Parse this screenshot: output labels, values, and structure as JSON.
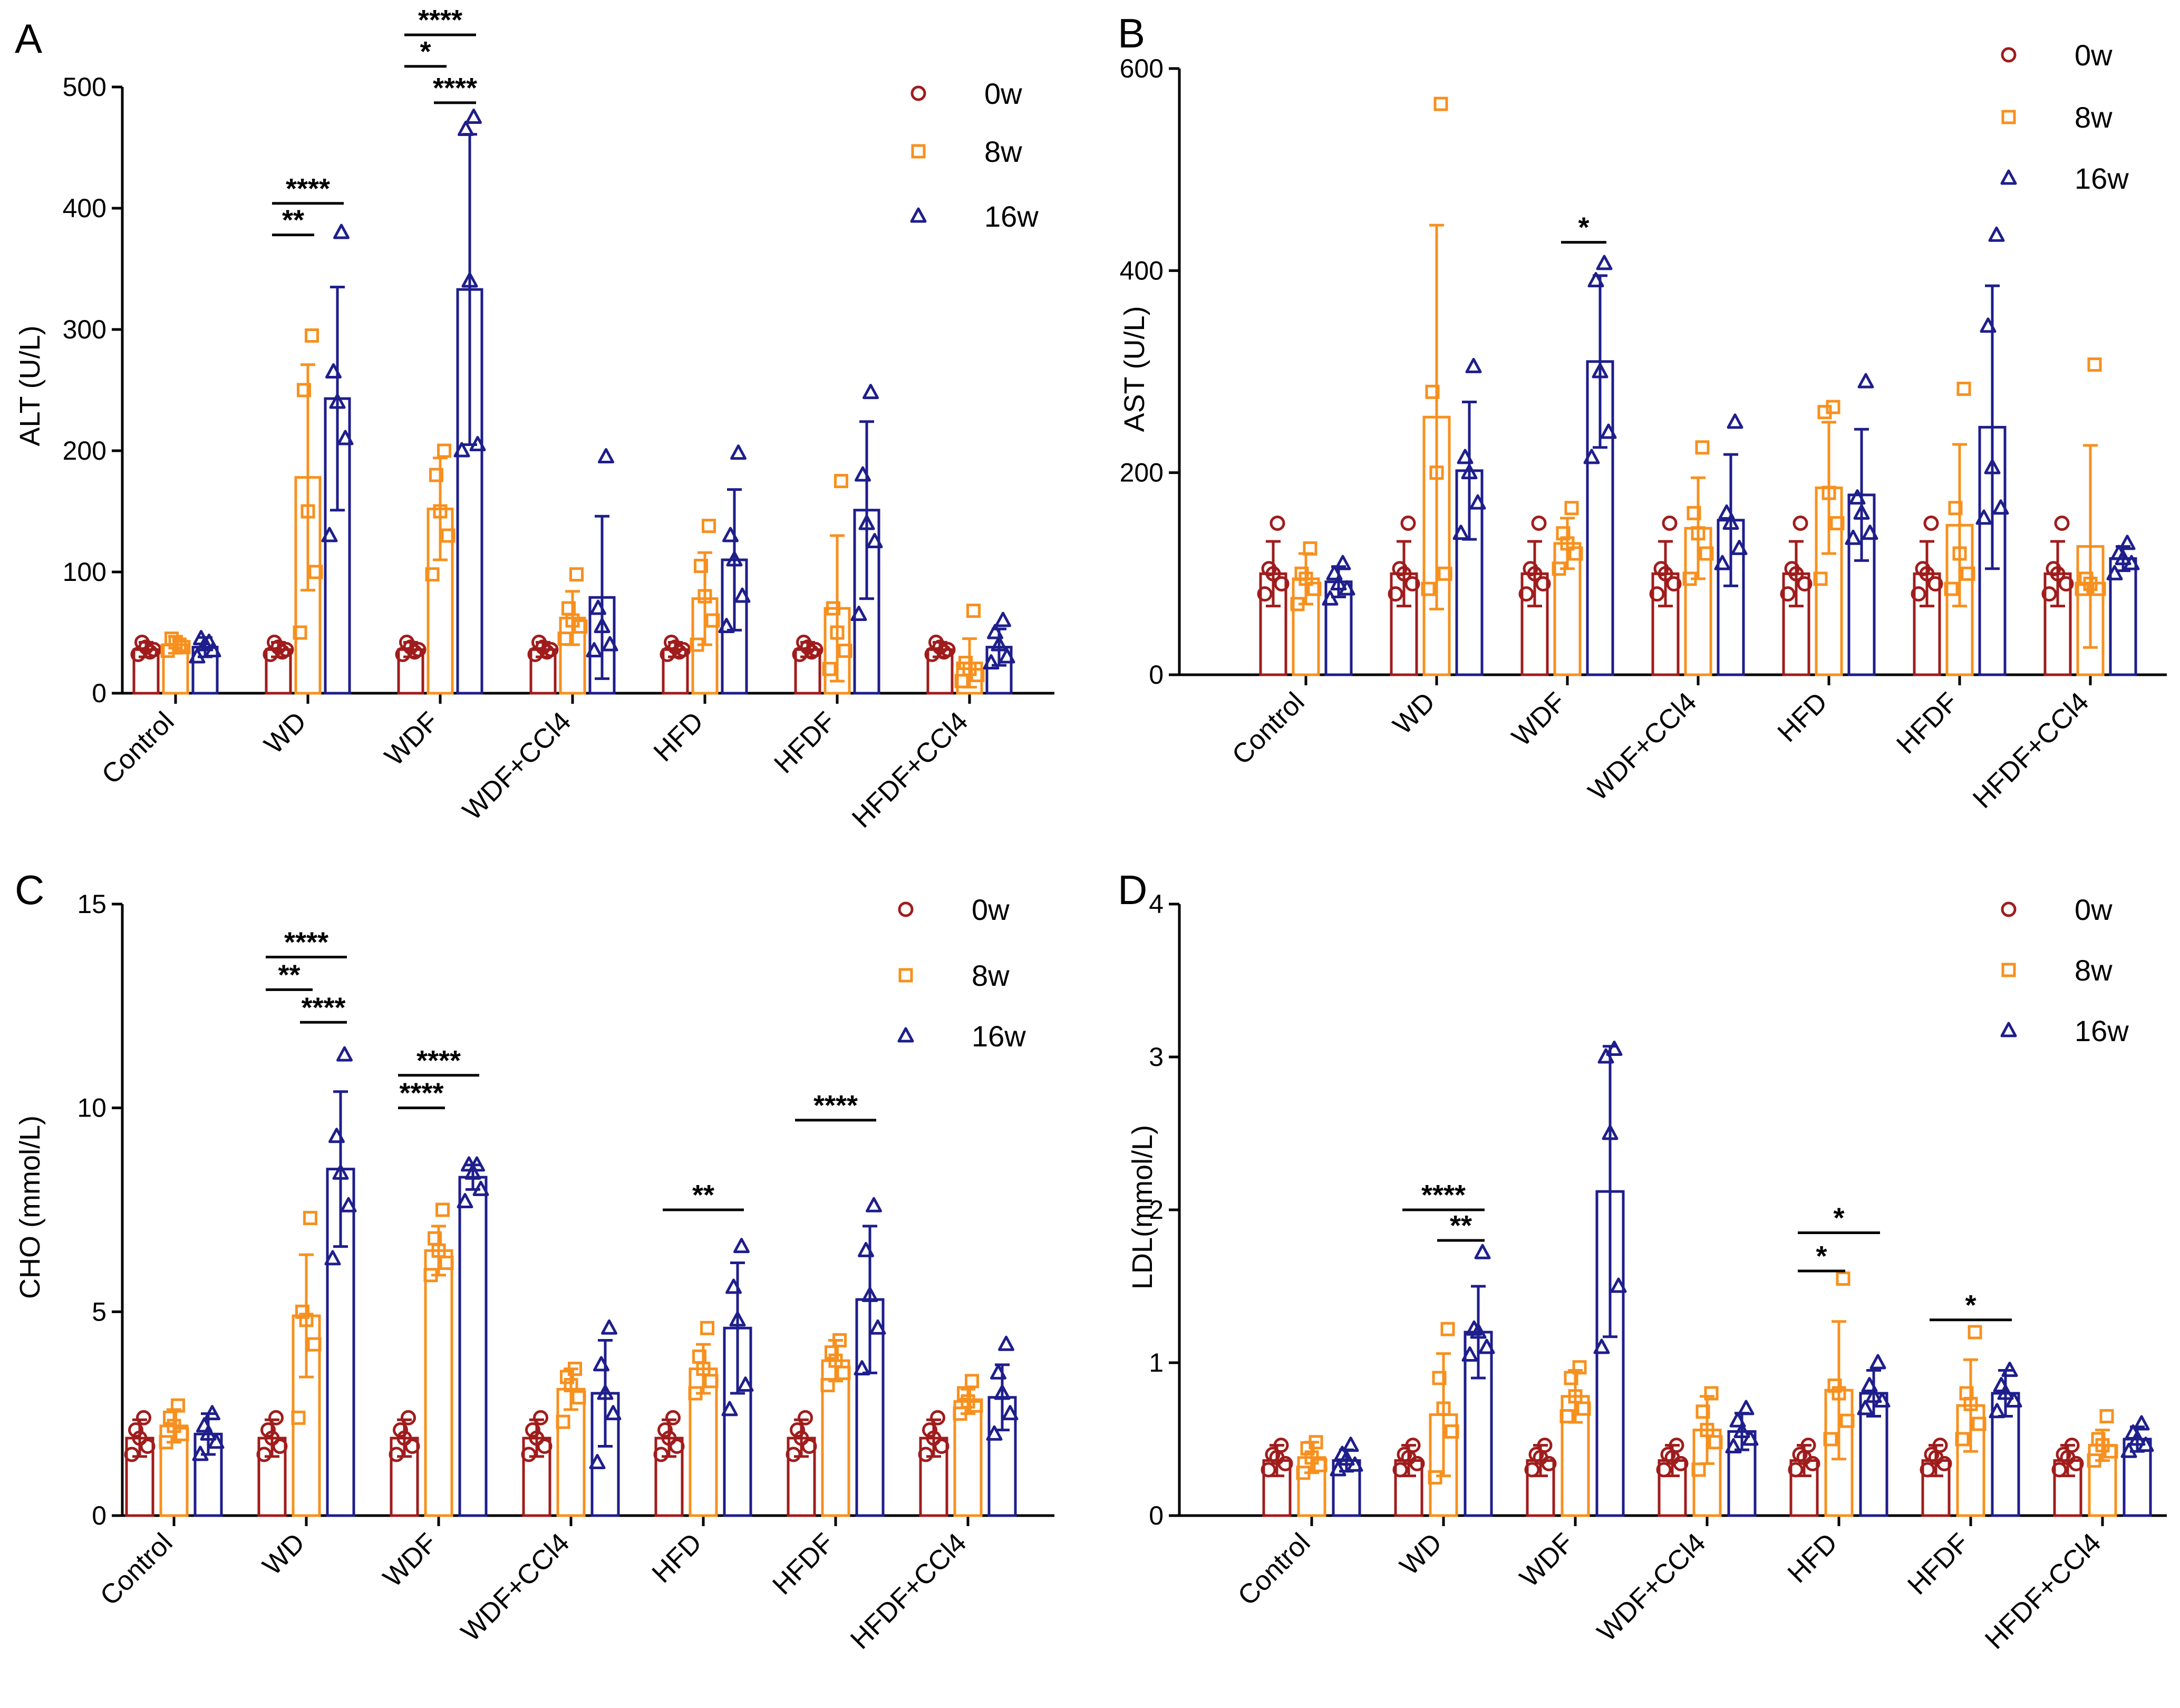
{
  "series_colors": {
    "0w": "#a01c1c",
    "8w": "#f7901e",
    "16w": "#1e1e8c"
  },
  "legend": [
    {
      "name": "0w",
      "marker": "circle"
    },
    {
      "name": "8w",
      "marker": "square"
    },
    {
      "name": "16w",
      "marker": "triangle"
    }
  ],
  "chart_data": [
    {
      "panel": "A",
      "type": "bar",
      "ylabel": "ALT (U/L)",
      "ylim": [
        0,
        500
      ],
      "yticks": [
        0,
        100,
        200,
        300,
        400,
        500
      ],
      "categories": [
        "Control",
        "WD",
        "WDF",
        "WDF+CCl4",
        "HFD",
        "HFDF",
        "HFDF+CCl4"
      ],
      "series": [
        {
          "name": "0w",
          "means": [
            36,
            36,
            36,
            36,
            36,
            36,
            36
          ],
          "sd": [
            6,
            6,
            6,
            6,
            6,
            6,
            6
          ],
          "points": [
            [
              32,
              36,
              38,
              42,
              34
            ],
            [
              32,
              36,
              38,
              42,
              34
            ],
            [
              32,
              36,
              38,
              42,
              34
            ],
            [
              32,
              36,
              38,
              42,
              34
            ],
            [
              32,
              36,
              38,
              42,
              34
            ],
            [
              32,
              36,
              38,
              42,
              34
            ],
            [
              32,
              36,
              38,
              42,
              34
            ]
          ]
        },
        {
          "name": "8w",
          "means": [
            40,
            178,
            152,
            62,
            78,
            70,
            25
          ],
          "sd": [
            7,
            93,
            42,
            22,
            38,
            60,
            20
          ],
          "points": [
            [
              35,
              38,
              42,
              45,
              40
            ],
            [
              50,
              100,
              150,
              250,
              295
            ],
            [
              98,
              130,
              150,
              180,
              200
            ],
            [
              45,
              55,
              60,
              70,
              98
            ],
            [
              40,
              60,
              80,
              105,
              138
            ],
            [
              20,
              35,
              50,
              70,
              175
            ],
            [
              10,
              15,
              20,
              25,
              68
            ]
          ]
        },
        {
          "name": "16w",
          "means": [
            38,
            243,
            333,
            79,
            110,
            151,
            38
          ],
          "sd": [
            8,
            92,
            128,
            67,
            58,
            73,
            15
          ],
          "points": [
            [
              30,
              35,
              40,
              45,
              42
            ],
            [
              130,
              210,
              240,
              265,
              380
            ],
            [
              200,
              205,
              340,
              465,
              475
            ],
            [
              35,
              40,
              55,
              70,
              195
            ],
            [
              55,
              80,
              110,
              130,
              198
            ],
            [
              65,
              125,
              140,
              180,
              248
            ],
            [
              25,
              30,
              40,
              50,
              60
            ]
          ]
        }
      ],
      "significance": [
        {
          "label": "****",
          "from_cat": 1,
          "from_series": 0,
          "to_cat": 1,
          "to_series": 2,
          "y": 404
        },
        {
          "label": "**",
          "from_cat": 1,
          "from_series": 0,
          "to_cat": 1,
          "to_series": 1,
          "y": 378
        },
        {
          "label": "****",
          "from_cat": 2,
          "from_series": 0,
          "to_cat": 2,
          "to_series": 2,
          "y": 543
        },
        {
          "label": "*",
          "from_cat": 2,
          "from_series": 0,
          "to_cat": 2,
          "to_series": 1,
          "y": 517
        },
        {
          "label": "****",
          "from_cat": 2,
          "from_series": 1,
          "to_cat": 2,
          "to_series": 2,
          "y": 487
        }
      ]
    },
    {
      "panel": "B",
      "type": "bar",
      "ylabel": "AST (U/L)",
      "ylim": [
        0,
        600
      ],
      "yticks": [
        0,
        200,
        400,
        600
      ],
      "categories": [
        "Control",
        "WD",
        "WDF",
        "WDF+CCl4",
        "HFD",
        "HFDF",
        "HFDF+CCl4"
      ],
      "series": [
        {
          "name": "0w",
          "means": [
            100,
            100,
            100,
            100,
            100,
            100,
            100
          ],
          "sd": [
            32,
            32,
            32,
            32,
            32,
            32,
            32
          ],
          "points": [
            [
              80,
              90,
              100,
              105,
              150
            ],
            [
              80,
              90,
              100,
              105,
              150
            ],
            [
              80,
              90,
              100,
              105,
              150
            ],
            [
              80,
              90,
              100,
              105,
              150
            ],
            [
              80,
              90,
              100,
              105,
              150
            ],
            [
              80,
              90,
              100,
              105,
              150
            ],
            [
              80,
              90,
              100,
              105,
              150
            ]
          ]
        },
        {
          "name": "8w",
          "means": [
            95,
            255,
            130,
            145,
            185,
            148,
            127
          ],
          "sd": [
            25,
            190,
            25,
            50,
            65,
            80,
            100
          ],
          "points": [
            [
              70,
              85,
              95,
              100,
              125
            ],
            [
              85,
              100,
              200,
              280,
              565
            ],
            [
              105,
              120,
              130,
              140,
              165
            ],
            [
              95,
              120,
              140,
              160,
              225
            ],
            [
              95,
              150,
              180,
              260,
              265
            ],
            [
              85,
              100,
              120,
              165,
              283
            ],
            [
              85,
              85,
              90,
              95,
              307
            ]
          ]
        },
        {
          "name": "16w",
          "means": [
            92,
            202,
            310,
            153,
            178,
            245,
            115
          ],
          "sd": [
            15,
            68,
            85,
            65,
            65,
            140,
            12
          ],
          "points": [
            [
              75,
              85,
              90,
              100,
              110
            ],
            [
              140,
              170,
              200,
              215,
              305
            ],
            [
              215,
              240,
              300,
              390,
              407
            ],
            [
              110,
              125,
              150,
              160,
              250
            ],
            [
              135,
              140,
              160,
              175,
              290
            ],
            [
              155,
              165,
              205,
              345,
              435
            ],
            [
              100,
              110,
              115,
              120,
              130
            ]
          ]
        }
      ],
      "significance": [
        {
          "label": "*",
          "from_cat": 2,
          "from_series": 1,
          "to_cat": 2,
          "to_series": 2,
          "y": 428
        }
      ]
    },
    {
      "panel": "C",
      "type": "bar",
      "ylabel": "CHO (mmol/L)",
      "ylim": [
        0,
        15
      ],
      "yticks": [
        0,
        5,
        10,
        15
      ],
      "categories": [
        "Control",
        "WD",
        "WDF",
        "WDF+CCl4",
        "HFD",
        "HFDF",
        "HFDF+CCl4"
      ],
      "series": [
        {
          "name": "0w",
          "means": [
            1.9,
            1.9,
            1.9,
            1.9,
            1.9,
            1.9,
            1.9
          ],
          "sd": [
            0.45,
            0.45,
            0.45,
            0.45,
            0.45,
            0.45,
            0.45
          ],
          "points": [
            [
              1.5,
              1.7,
              1.9,
              2.1,
              2.4
            ],
            [
              1.5,
              1.7,
              1.9,
              2.1,
              2.4
            ],
            [
              1.5,
              1.7,
              1.9,
              2.1,
              2.4
            ],
            [
              1.5,
              1.7,
              1.9,
              2.1,
              2.4
            ],
            [
              1.5,
              1.7,
              1.9,
              2.1,
              2.4
            ],
            [
              1.5,
              1.7,
              1.9,
              2.1,
              2.4
            ],
            [
              1.5,
              1.7,
              1.9,
              2.1,
              2.4
            ]
          ]
        },
        {
          "name": "8w",
          "means": [
            2.2,
            4.9,
            6.5,
            3.1,
            3.6,
            3.8,
            2.8
          ],
          "sd": [
            0.4,
            1.5,
            0.6,
            0.5,
            0.6,
            0.5,
            0.3
          ],
          "points": [
            [
              1.8,
              2.0,
              2.2,
              2.4,
              2.7
            ],
            [
              2.4,
              4.2,
              4.8,
              5.0,
              7.3
            ],
            [
              5.9,
              6.2,
              6.5,
              6.8,
              7.5
            ],
            [
              2.3,
              2.9,
              3.2,
              3.4,
              3.6
            ],
            [
              3.0,
              3.3,
              3.6,
              3.9,
              4.6
            ],
            [
              3.2,
              3.5,
              3.8,
              4.0,
              4.3
            ],
            [
              2.5,
              2.7,
              2.8,
              3.0,
              3.3
            ]
          ]
        },
        {
          "name": "16w",
          "means": [
            2.0,
            8.5,
            8.3,
            3.0,
            4.6,
            5.3,
            2.9
          ],
          "sd": [
            0.5,
            1.9,
            0.3,
            1.3,
            1.6,
            1.8,
            0.8
          ],
          "points": [
            [
              1.5,
              1.8,
              2.0,
              2.2,
              2.5
            ],
            [
              6.3,
              7.6,
              8.4,
              9.3,
              11.3
            ],
            [
              7.7,
              8.0,
              8.4,
              8.6,
              8.6
            ],
            [
              1.3,
              2.5,
              3.0,
              3.7,
              4.6
            ],
            [
              2.6,
              3.2,
              4.8,
              5.6,
              6.6
            ],
            [
              3.6,
              4.6,
              5.4,
              6.5,
              7.6
            ],
            [
              2.0,
              2.5,
              3.0,
              3.5,
              4.2
            ]
          ]
        }
      ],
      "significance": [
        {
          "label": "****",
          "from_cat": 1,
          "from_series": 0,
          "to_cat": 1,
          "to_series": 2,
          "y": 13.7
        },
        {
          "label": "**",
          "from_cat": 1,
          "from_series": 0,
          "to_cat": 1,
          "to_series": 1,
          "y": 12.9
        },
        {
          "label": "****",
          "from_cat": 1,
          "from_series": 1,
          "to_cat": 1,
          "to_series": 2,
          "y": 12.1
        },
        {
          "label": "****",
          "from_cat": 2,
          "from_series": 0,
          "to_cat": 2,
          "to_series": 2,
          "y": 10.8
        },
        {
          "label": "****",
          "from_cat": 2,
          "from_series": 0,
          "to_cat": 2,
          "to_series": 1,
          "y": 10.0
        },
        {
          "label": "**",
          "from_cat": 4,
          "from_series": 0,
          "to_cat": 4,
          "to_series": 2,
          "y": 7.5
        },
        {
          "label": "****",
          "from_cat": 5,
          "from_series": 0,
          "to_cat": 5,
          "to_series": 2,
          "y": 9.7
        }
      ]
    },
    {
      "panel": "D",
      "type": "bar",
      "ylabel": "LDL(mmol/L)",
      "ylim": [
        0,
        4
      ],
      "yticks": [
        0,
        1,
        2,
        3,
        4
      ],
      "categories": [
        "Control",
        "WD",
        "WDF",
        "WDF+CCl4",
        "HFD",
        "HFDF",
        "HFDF+CCl4"
      ],
      "series": [
        {
          "name": "0w",
          "means": [
            0.36,
            0.36,
            0.36,
            0.36,
            0.36,
            0.36,
            0.36
          ],
          "sd": [
            0.1,
            0.1,
            0.1,
            0.1,
            0.1,
            0.1,
            0.1
          ],
          "points": [
            [
              0.3,
              0.34,
              0.38,
              0.4,
              0.46
            ],
            [
              0.3,
              0.34,
              0.38,
              0.4,
              0.46
            ],
            [
              0.3,
              0.34,
              0.38,
              0.4,
              0.46
            ],
            [
              0.3,
              0.34,
              0.38,
              0.4,
              0.46
            ],
            [
              0.3,
              0.34,
              0.38,
              0.4,
              0.46
            ],
            [
              0.3,
              0.34,
              0.38,
              0.4,
              0.46
            ],
            [
              0.3,
              0.34,
              0.38,
              0.4,
              0.46
            ]
          ]
        },
        {
          "name": "8w",
          "means": [
            0.38,
            0.66,
            0.78,
            0.56,
            0.82,
            0.72,
            0.46
          ],
          "sd": [
            0.1,
            0.4,
            0.17,
            0.22,
            0.45,
            0.3,
            0.1
          ],
          "points": [
            [
              0.28,
              0.33,
              0.38,
              0.44,
              0.48
            ],
            [
              0.25,
              0.55,
              0.7,
              0.9,
              1.22
            ],
            [
              0.65,
              0.7,
              0.78,
              0.9,
              0.97
            ],
            [
              0.3,
              0.48,
              0.56,
              0.68,
              0.8
            ],
            [
              0.5,
              0.62,
              0.8,
              0.85,
              1.55
            ],
            [
              0.5,
              0.6,
              0.73,
              0.8,
              1.2
            ],
            [
              0.36,
              0.42,
              0.46,
              0.5,
              0.65
            ]
          ]
        },
        {
          "name": "16w",
          "means": [
            0.36,
            1.2,
            2.12,
            0.55,
            0.8,
            0.8,
            0.5
          ],
          "sd": [
            0.07,
            0.3,
            0.95,
            0.12,
            0.15,
            0.15,
            0.08
          ],
          "points": [
            [
              0.3,
              0.33,
              0.37,
              0.4,
              0.46
            ],
            [
              1.05,
              1.1,
              1.2,
              1.22,
              1.72
            ],
            [
              1.1,
              1.5,
              2.5,
              3.0,
              3.05
            ],
            [
              0.45,
              0.5,
              0.55,
              0.62,
              0.7
            ],
            [
              0.7,
              0.75,
              0.78,
              0.85,
              1.0
            ],
            [
              0.68,
              0.75,
              0.8,
              0.85,
              0.95
            ],
            [
              0.42,
              0.46,
              0.5,
              0.54,
              0.6
            ]
          ]
        }
      ],
      "significance": [
        {
          "label": "****",
          "from_cat": 1,
          "from_series": 0,
          "to_cat": 1,
          "to_series": 2,
          "y": 2.0
        },
        {
          "label": "**",
          "from_cat": 1,
          "from_series": 1,
          "to_cat": 1,
          "to_series": 2,
          "y": 1.8
        },
        {
          "label": "*",
          "from_cat": 4,
          "from_series": 0,
          "to_cat": 4,
          "to_series": 2,
          "y": 1.85
        },
        {
          "label": "*",
          "from_cat": 4,
          "from_series": 0,
          "to_cat": 4,
          "to_series": 1,
          "y": 1.6
        },
        {
          "label": "*",
          "from_cat": 5,
          "from_series": 0,
          "to_cat": 5,
          "to_series": 2,
          "y": 1.28
        }
      ]
    }
  ]
}
